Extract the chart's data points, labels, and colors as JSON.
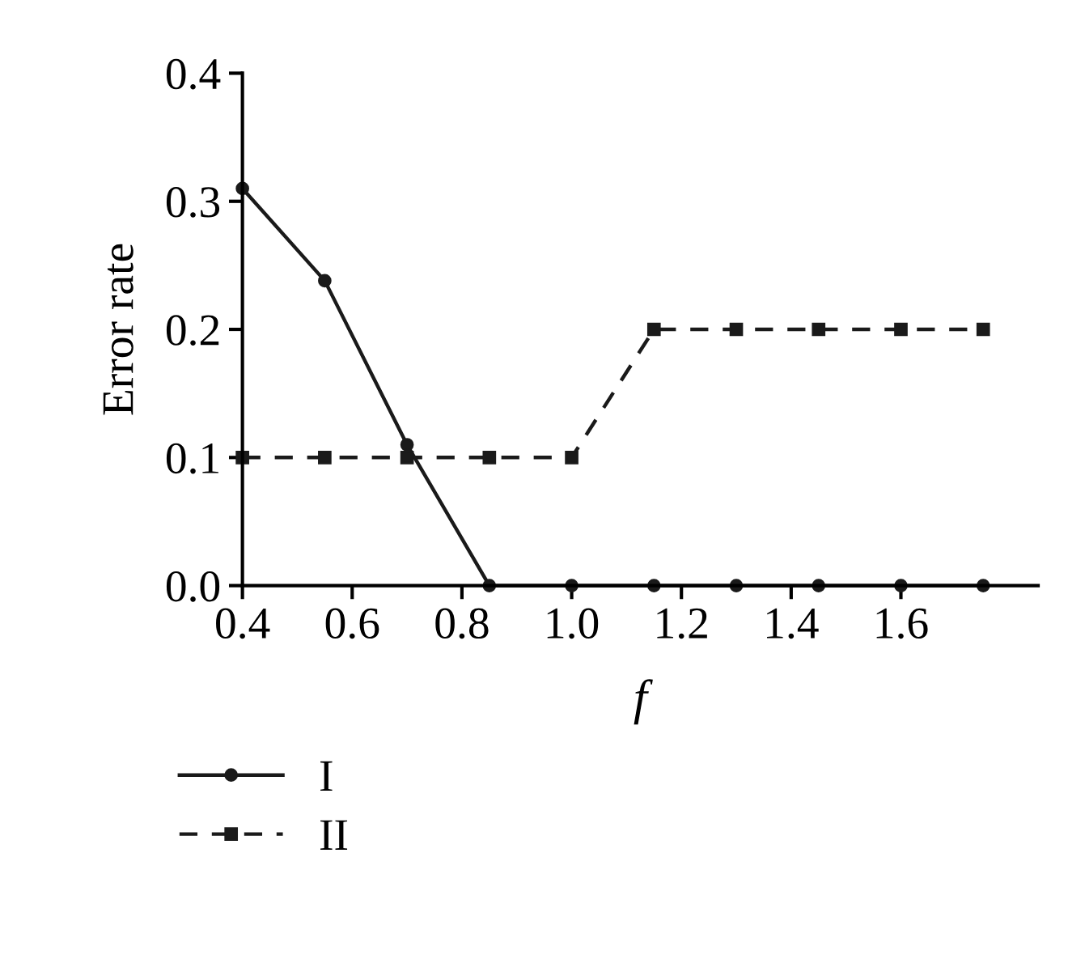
{
  "chart_data": {
    "type": "line",
    "xlabel": "f",
    "ylabel": "Error rate",
    "x": [
      0.4,
      0.55,
      0.7,
      0.85,
      1.0,
      1.15,
      1.3,
      1.45,
      1.6,
      1.75
    ],
    "series": [
      {
        "name": "I",
        "color": "#1a1a1a",
        "marker": "circle",
        "line_style": "solid",
        "values": [
          0.31,
          0.238,
          0.11,
          0,
          0,
          0,
          0,
          0,
          0,
          0
        ]
      },
      {
        "name": "II",
        "color": "#1a1a1a",
        "marker": "square",
        "line_style": "dashed",
        "values": [
          0.1,
          0.1,
          0.1,
          0.1,
          0.1,
          0.2,
          0.2,
          0.2,
          0.2,
          0.2
        ]
      }
    ],
    "xlim": [
      0.4,
      1.85
    ],
    "ylim": [
      0,
      0.4
    ],
    "xticks": [
      0.4,
      0.6,
      0.8,
      {
        "value": 1,
        "label": "1.0"
      },
      1.2,
      1.4,
      1.6
    ],
    "yticks": [
      {
        "value": 0,
        "label": "0.0"
      },
      0.1,
      0.2,
      0.3,
      0.4
    ],
    "grid": false,
    "legend": "bottom"
  }
}
